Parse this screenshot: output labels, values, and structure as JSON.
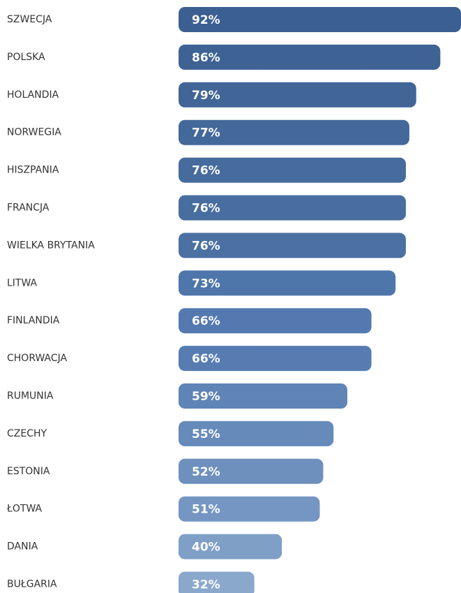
{
  "chart_data": {
    "type": "hbar",
    "categories": [
      "SZWECJA",
      "POLSKA",
      "HOLANDIA",
      "NORWEGIA",
      "HISZPANIA",
      "FRANCJA",
      "WIELKA BRYTANIA",
      "LITWA",
      "FINLANDIA",
      "CHORWACJA",
      "RUMUNIA",
      "CZECHY",
      "ESTONIA",
      "ŁOTWA",
      "DANIA",
      "BUŁGARIA"
    ],
    "values": [
      92,
      86,
      79,
      77,
      76,
      76,
      76,
      73,
      66,
      66,
      59,
      55,
      52,
      51,
      40,
      32
    ],
    "value_labels": [
      "92%",
      "86%",
      "79%",
      "77%",
      "76%",
      "76%",
      "76%",
      "73%",
      "66%",
      "66%",
      "59%",
      "55%",
      "52%",
      "51%",
      "40%",
      "32%"
    ],
    "colors": [
      "#3c5f91",
      "#3e6294",
      "#416597",
      "#43689a",
      "#466b9d",
      "#486ea0",
      "#4b71a3",
      "#4e76ab",
      "#5479b0",
      "#567cb2",
      "#5f84b6",
      "#668aba",
      "#6d90bd",
      "#7596c2",
      "#7f9fc7",
      "#8aa7cc"
    ],
    "xlim": [
      10,
      92
    ]
  }
}
